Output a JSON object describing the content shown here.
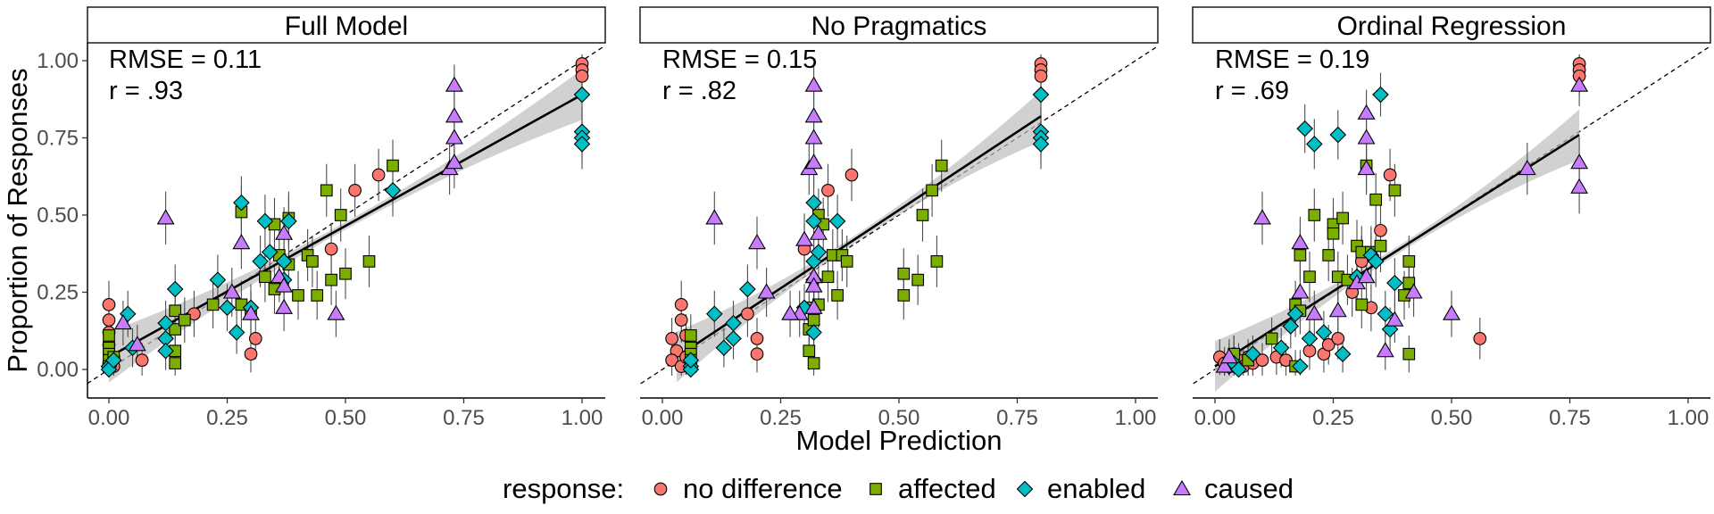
{
  "chart_data": {
    "type": "scatter",
    "xlabel": "Model Prediction",
    "ylabel": "Proportion of Responses",
    "xlim": [
      0,
      1
    ],
    "ylim": [
      0,
      1
    ],
    "x_ticks": [
      "0.00",
      "0.25",
      "0.50",
      "0.75",
      "1.00"
    ],
    "y_ticks": [
      "0.00",
      "0.25",
      "0.50",
      "0.75",
      "1.00"
    ],
    "grid": false,
    "reference_line": "y = x (dashed)",
    "fit": "linear regression with confidence band",
    "legend": {
      "title": "response:",
      "position": "bottom",
      "entries": [
        {
          "label": "no difference",
          "shape": "circle",
          "color": "#F8766D"
        },
        {
          "label": "affected",
          "shape": "square",
          "color": "#7CAE00"
        },
        {
          "label": "enabled",
          "shape": "diamond",
          "color": "#00BFC4"
        },
        {
          "label": "caused",
          "shape": "triangle",
          "color": "#C77CFF"
        }
      ]
    },
    "panels": [
      {
        "title": "Full Model",
        "rmse_text": "RMSE = 0.11",
        "r_text": "r = .93",
        "fit_line": [
          [
            0,
            0.04
          ],
          [
            1,
            0.89
          ]
        ],
        "points": {
          "no difference": [
            [
              0,
              0.21
            ],
            [
              0,
              0.16
            ],
            [
              0,
              0.12
            ],
            [
              0,
              0.08
            ],
            [
              0.01,
              0.04
            ],
            [
              0,
              0.02
            ],
            [
              0.01,
              0.01
            ],
            [
              0.07,
              0.03
            ],
            [
              0.18,
              0.18
            ],
            [
              0.31,
              0.1
            ],
            [
              0.3,
              0.05
            ],
            [
              0.47,
              0.39
            ],
            [
              0.52,
              0.58
            ],
            [
              0.57,
              0.63
            ],
            [
              1,
              0.99
            ],
            [
              1,
              0.97
            ],
            [
              1,
              0.95
            ]
          ],
          "affected": [
            [
              0,
              0.11
            ],
            [
              0,
              0.07
            ],
            [
              0,
              0.05
            ],
            [
              0,
              0.03
            ],
            [
              0,
              0.01
            ],
            [
              0.01,
              0.04
            ],
            [
              0.14,
              0.19
            ],
            [
              0.14,
              0.13
            ],
            [
              0.14,
              0.06
            ],
            [
              0.14,
              0.02
            ],
            [
              0.16,
              0.16
            ],
            [
              0.22,
              0.21
            ],
            [
              0.28,
              0.51
            ],
            [
              0.28,
              0.21
            ],
            [
              0.3,
              0.18
            ],
            [
              0.33,
              0.3
            ],
            [
              0.35,
              0.47
            ],
            [
              0.35,
              0.26
            ],
            [
              0.36,
              0.37
            ],
            [
              0.38,
              0.49
            ],
            [
              0.38,
              0.34
            ],
            [
              0.4,
              0.24
            ],
            [
              0.42,
              0.37
            ],
            [
              0.43,
              0.35
            ],
            [
              0.44,
              0.24
            ],
            [
              0.46,
              0.58
            ],
            [
              0.47,
              0.29
            ],
            [
              0.49,
              0.5
            ],
            [
              0.5,
              0.31
            ],
            [
              0.55,
              0.35
            ],
            [
              0.6,
              0.66
            ]
          ],
          "enabled": [
            [
              0,
              0.01
            ],
            [
              0,
              0
            ],
            [
              0.01,
              0.03
            ],
            [
              0.04,
              0.18
            ],
            [
              0.05,
              0.07
            ],
            [
              0.12,
              0.15
            ],
            [
              0.12,
              0.1
            ],
            [
              0.12,
              0.06
            ],
            [
              0.14,
              0.26
            ],
            [
              0.23,
              0.29
            ],
            [
              0.25,
              0.2
            ],
            [
              0.27,
              0.12
            ],
            [
              0.28,
              0.54
            ],
            [
              0.3,
              0.2
            ],
            [
              0.32,
              0.35
            ],
            [
              0.33,
              0.48
            ],
            [
              0.34,
              0.38
            ],
            [
              0.37,
              0.35
            ],
            [
              0.37,
              0.29
            ],
            [
              0.38,
              0.48
            ],
            [
              0.6,
              0.58
            ],
            [
              1,
              0.89
            ],
            [
              1,
              0.77
            ],
            [
              1,
              0.75
            ],
            [
              1,
              0.73
            ]
          ],
          "caused": [
            [
              0.03,
              0.15
            ],
            [
              0.06,
              0.08
            ],
            [
              0.12,
              0.49
            ],
            [
              0.26,
              0.25
            ],
            [
              0.28,
              0.41
            ],
            [
              0.3,
              0.18
            ],
            [
              0.36,
              0.3
            ],
            [
              0.37,
              0.44
            ],
            [
              0.37,
              0.27
            ],
            [
              0.37,
              0.2
            ],
            [
              0.48,
              0.18
            ],
            [
              0.72,
              0.65
            ],
            [
              0.73,
              0.92
            ],
            [
              0.73,
              0.82
            ],
            [
              0.73,
              0.75
            ],
            [
              0.73,
              0.67
            ]
          ]
        }
      },
      {
        "title": "No Pragmatics",
        "rmse_text": "RMSE = 0.15",
        "r_text": "r = .82",
        "fit_line": [
          [
            0.03,
            0.04
          ],
          [
            0.8,
            0.82
          ]
        ],
        "points": {
          "no difference": [
            [
              0.04,
              0.21
            ],
            [
              0.04,
              0.16
            ],
            [
              0.02,
              0.1
            ],
            [
              0.03,
              0.06
            ],
            [
              0.02,
              0.03
            ],
            [
              0.04,
              0.01
            ],
            [
              0.05,
              0.04
            ],
            [
              0.06,
              0.02
            ],
            [
              0.05,
              0.11
            ],
            [
              0.18,
              0.18
            ],
            [
              0.2,
              0.1
            ],
            [
              0.2,
              0.05
            ],
            [
              0.35,
              0.58
            ],
            [
              0.4,
              0.63
            ],
            [
              0.3,
              0.39
            ],
            [
              0.8,
              0.99
            ],
            [
              0.8,
              0.97
            ],
            [
              0.8,
              0.95
            ]
          ],
          "affected": [
            [
              0.06,
              0.11
            ],
            [
              0.06,
              0.07
            ],
            [
              0.06,
              0.05
            ],
            [
              0.06,
              0.03
            ],
            [
              0.06,
              0.01
            ],
            [
              0.31,
              0.2
            ],
            [
              0.31,
              0.13
            ],
            [
              0.31,
              0.06
            ],
            [
              0.32,
              0.02
            ],
            [
              0.32,
              0.16
            ],
            [
              0.33,
              0.5
            ],
            [
              0.33,
              0.21
            ],
            [
              0.34,
              0.47
            ],
            [
              0.35,
              0.3
            ],
            [
              0.36,
              0.37
            ],
            [
              0.37,
              0.24
            ],
            [
              0.38,
              0.37
            ],
            [
              0.39,
              0.35
            ],
            [
              0.51,
              0.31
            ],
            [
              0.51,
              0.24
            ],
            [
              0.54,
              0.29
            ],
            [
              0.55,
              0.5
            ],
            [
              0.57,
              0.58
            ],
            [
              0.58,
              0.35
            ],
            [
              0.59,
              0.66
            ]
          ],
          "enabled": [
            [
              0.06,
              0.01
            ],
            [
              0.06,
              0
            ],
            [
              0.06,
              0.03
            ],
            [
              0.11,
              0.18
            ],
            [
              0.13,
              0.07
            ],
            [
              0.15,
              0.15
            ],
            [
              0.15,
              0.1
            ],
            [
              0.18,
              0.26
            ],
            [
              0.3,
              0.2
            ],
            [
              0.32,
              0.12
            ],
            [
              0.32,
              0.54
            ],
            [
              0.32,
              0.48
            ],
            [
              0.32,
              0.35
            ],
            [
              0.33,
              0.38
            ],
            [
              0.32,
              0.29
            ],
            [
              0.37,
              0.48
            ],
            [
              0.8,
              0.89
            ],
            [
              0.8,
              0.77
            ],
            [
              0.8,
              0.75
            ],
            [
              0.8,
              0.73
            ]
          ],
          "caused": [
            [
              0.11,
              0.49
            ],
            [
              0.2,
              0.41
            ],
            [
              0.22,
              0.25
            ],
            [
              0.29,
              0.18
            ],
            [
              0.3,
              0.42
            ],
            [
              0.31,
              0.65
            ],
            [
              0.32,
              0.92
            ],
            [
              0.32,
              0.82
            ],
            [
              0.32,
              0.75
            ],
            [
              0.32,
              0.67
            ],
            [
              0.32,
              0.3
            ],
            [
              0.33,
              0.44
            ],
            [
              0.32,
              0.27
            ],
            [
              0.32,
              0.2
            ],
            [
              0.27,
              0.18
            ]
          ]
        }
      },
      {
        "title": "Ordinal Regression",
        "rmse_text": "RMSE = 0.19",
        "r_text": "r = .69",
        "fit_line": [
          [
            0,
            0.01
          ],
          [
            0.77,
            0.76
          ]
        ],
        "points": {
          "no difference": [
            [
              0.01,
              0.04
            ],
            [
              0.02,
              0.02
            ],
            [
              0.03,
              0.03
            ],
            [
              0.04,
              0.05
            ],
            [
              0.05,
              0.03
            ],
            [
              0.06,
              0.01
            ],
            [
              0.07,
              0.04
            ],
            [
              0.08,
              0.02
            ],
            [
              0.1,
              0.03
            ],
            [
              0.13,
              0.04
            ],
            [
              0.15,
              0.03
            ],
            [
              0.2,
              0.06
            ],
            [
              0.23,
              0.05
            ],
            [
              0.24,
              0.08
            ],
            [
              0.26,
              0.1
            ],
            [
              0.29,
              0.25
            ],
            [
              0.31,
              0.35
            ],
            [
              0.33,
              0.2
            ],
            [
              0.35,
              0.45
            ],
            [
              0.37,
              0.63
            ],
            [
              0.56,
              0.1
            ],
            [
              0.77,
              0.99
            ],
            [
              0.77,
              0.97
            ],
            [
              0.77,
              0.95
            ]
          ],
          "affected": [
            [
              0.04,
              0.05
            ],
            [
              0.07,
              0.03
            ],
            [
              0.12,
              0.1
            ],
            [
              0.17,
              0.01
            ],
            [
              0.17,
              0.21
            ],
            [
              0.18,
              0.19
            ],
            [
              0.18,
              0.37
            ],
            [
              0.2,
              0.3
            ],
            [
              0.21,
              0.5
            ],
            [
              0.24,
              0.37
            ],
            [
              0.25,
              0.47
            ],
            [
              0.25,
              0.44
            ],
            [
              0.26,
              0.3
            ],
            [
              0.27,
              0.49
            ],
            [
              0.28,
              0.29
            ],
            [
              0.3,
              0.4
            ],
            [
              0.31,
              0.38
            ],
            [
              0.31,
              0.21
            ],
            [
              0.32,
              0.66
            ],
            [
              0.33,
              0.38
            ],
            [
              0.34,
              0.55
            ],
            [
              0.35,
              0.4
            ],
            [
              0.38,
              0.58
            ],
            [
              0.4,
              0.24
            ],
            [
              0.41,
              0.28
            ],
            [
              0.41,
              0.35
            ],
            [
              0.41,
              0.05
            ]
          ],
          "enabled": [
            [
              0.03,
              0.01
            ],
            [
              0.04,
              0.02
            ],
            [
              0.05,
              0
            ],
            [
              0.08,
              0.05
            ],
            [
              0.14,
              0.07
            ],
            [
              0.16,
              0.14
            ],
            [
              0.17,
              0.18
            ],
            [
              0.18,
              0.01
            ],
            [
              0.19,
              0.78
            ],
            [
              0.2,
              0.1
            ],
            [
              0.21,
              0.73
            ],
            [
              0.23,
              0.12
            ],
            [
              0.26,
              0.76
            ],
            [
              0.27,
              0.05
            ],
            [
              0.3,
              0.3
            ],
            [
              0.33,
              0.37
            ],
            [
              0.34,
              0.35
            ],
            [
              0.35,
              0.89
            ],
            [
              0.36,
              0.18
            ],
            [
              0.37,
              0.13
            ],
            [
              0.38,
              0.28
            ]
          ],
          "caused": [
            [
              0.02,
              0.01
            ],
            [
              0.03,
              0.04
            ],
            [
              0.1,
              0.49
            ],
            [
              0.18,
              0.41
            ],
            [
              0.18,
              0.25
            ],
            [
              0.21,
              0.18
            ],
            [
              0.26,
              0.19
            ],
            [
              0.3,
              0.28
            ],
            [
              0.32,
              0.83
            ],
            [
              0.32,
              0.75
            ],
            [
              0.32,
              0.65
            ],
            [
              0.32,
              0.3
            ],
            [
              0.36,
              0.06
            ],
            [
              0.38,
              0.16
            ],
            [
              0.42,
              0.25
            ],
            [
              0.5,
              0.18
            ],
            [
              0.66,
              0.65
            ],
            [
              0.77,
              0.92
            ],
            [
              0.77,
              0.67
            ],
            [
              0.77,
              0.59
            ]
          ]
        }
      }
    ]
  }
}
